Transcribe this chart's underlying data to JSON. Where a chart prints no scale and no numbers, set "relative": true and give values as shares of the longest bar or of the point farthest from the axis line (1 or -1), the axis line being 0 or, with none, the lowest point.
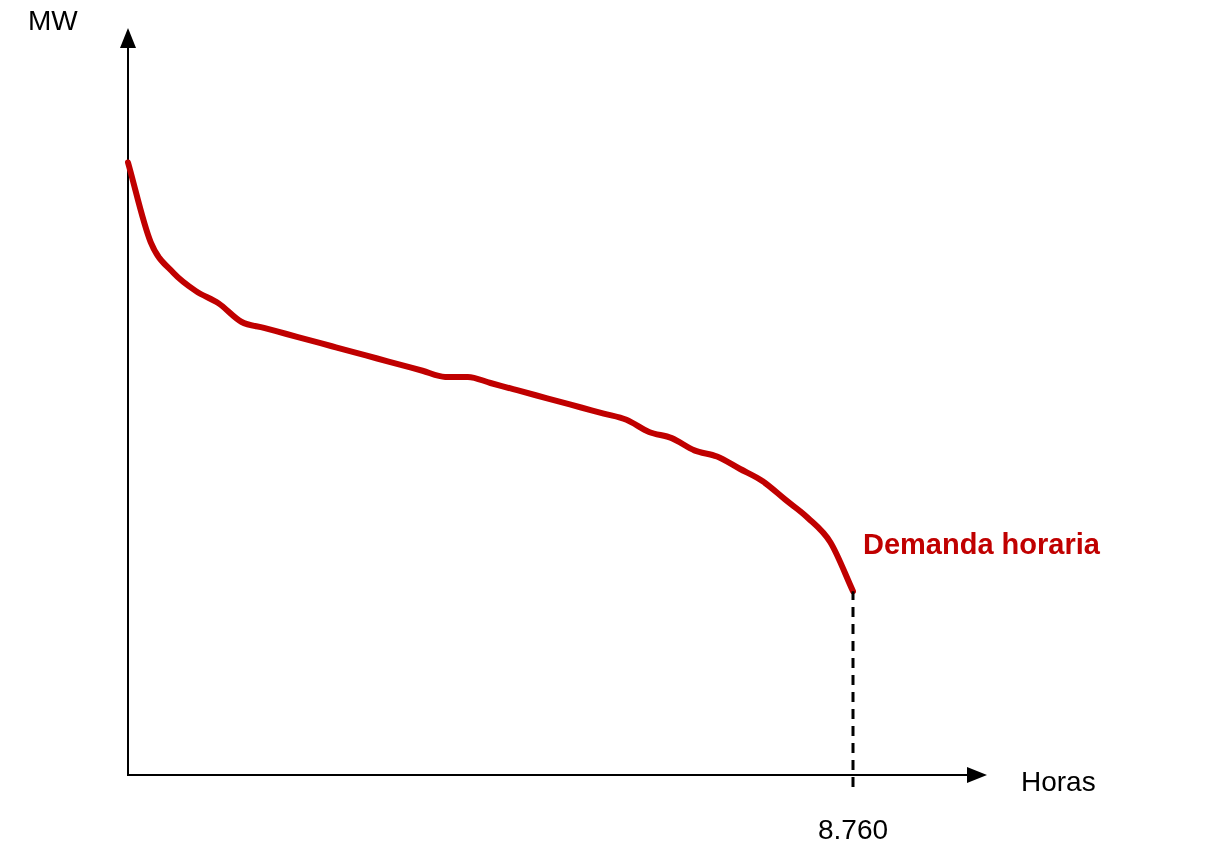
{
  "chart_data": {
    "type": "line",
    "relative": true,
    "ylabel": "MW",
    "categories": [
      null,
      null,
      null,
      null,
      null,
      null,
      null,
      null,
      null,
      null,
      null,
      null,
      null,
      null,
      null,
      null,
      null,
      null,
      null,
      null,
      null,
      null,
      null,
      null,
      null,
      null,
      null,
      null,
      null,
      null,
      null,
      null,
      null
    ],
    "series": [
      {
        "name": "Demanda horaria",
        "color": "#c00000",
        "values": [
          1,
          0.87,
          0.82,
          0.79,
          0.77,
          0.74,
          0.73,
          0.72,
          0.71,
          0.7,
          0.69,
          0.68,
          0.67,
          0.66,
          0.65,
          0.65,
          0.64,
          0.63,
          0.62,
          0.61,
          0.6,
          0.59,
          0.58,
          0.56,
          0.55,
          0.53,
          0.52,
          0.5,
          0.48,
          0.45,
          0.42,
          0.38,
          0.3
        ]
      }
    ],
    "annotations": [
      "8.760",
      "Horas"
    ],
    "grid": false,
    "legend": false,
    "marker": "none",
    "line_style": "solid"
  }
}
